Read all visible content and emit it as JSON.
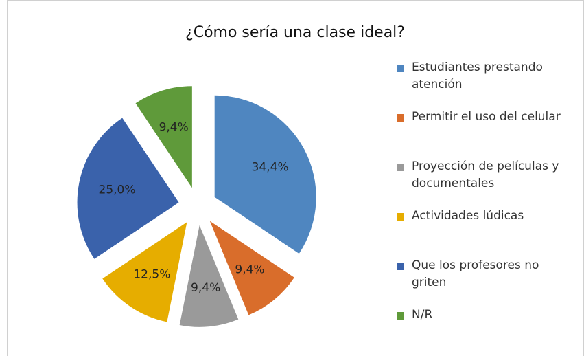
{
  "chart_data": {
    "type": "pie",
    "title": "¿Cómo sería una clase ideal?",
    "categories": [
      "Estudiantes prestando atención",
      "Permitir el uso del celular",
      "Proyección de películas y documentales",
      "Actividades lúdicas",
      "Que los profesores no griten",
      "N/R"
    ],
    "values": [
      34.4,
      9.4,
      9.4,
      12.5,
      25.0,
      9.4
    ],
    "value_labels": [
      "34,4%",
      "9,4%",
      "9,4%",
      "12,5%",
      "25,0%",
      "9,4%"
    ],
    "colors": [
      "#4f86c0",
      "#d96d2b",
      "#9a9a9a",
      "#e6ad00",
      "#3a62ab",
      "#5f9a3a"
    ],
    "legend": "right"
  }
}
